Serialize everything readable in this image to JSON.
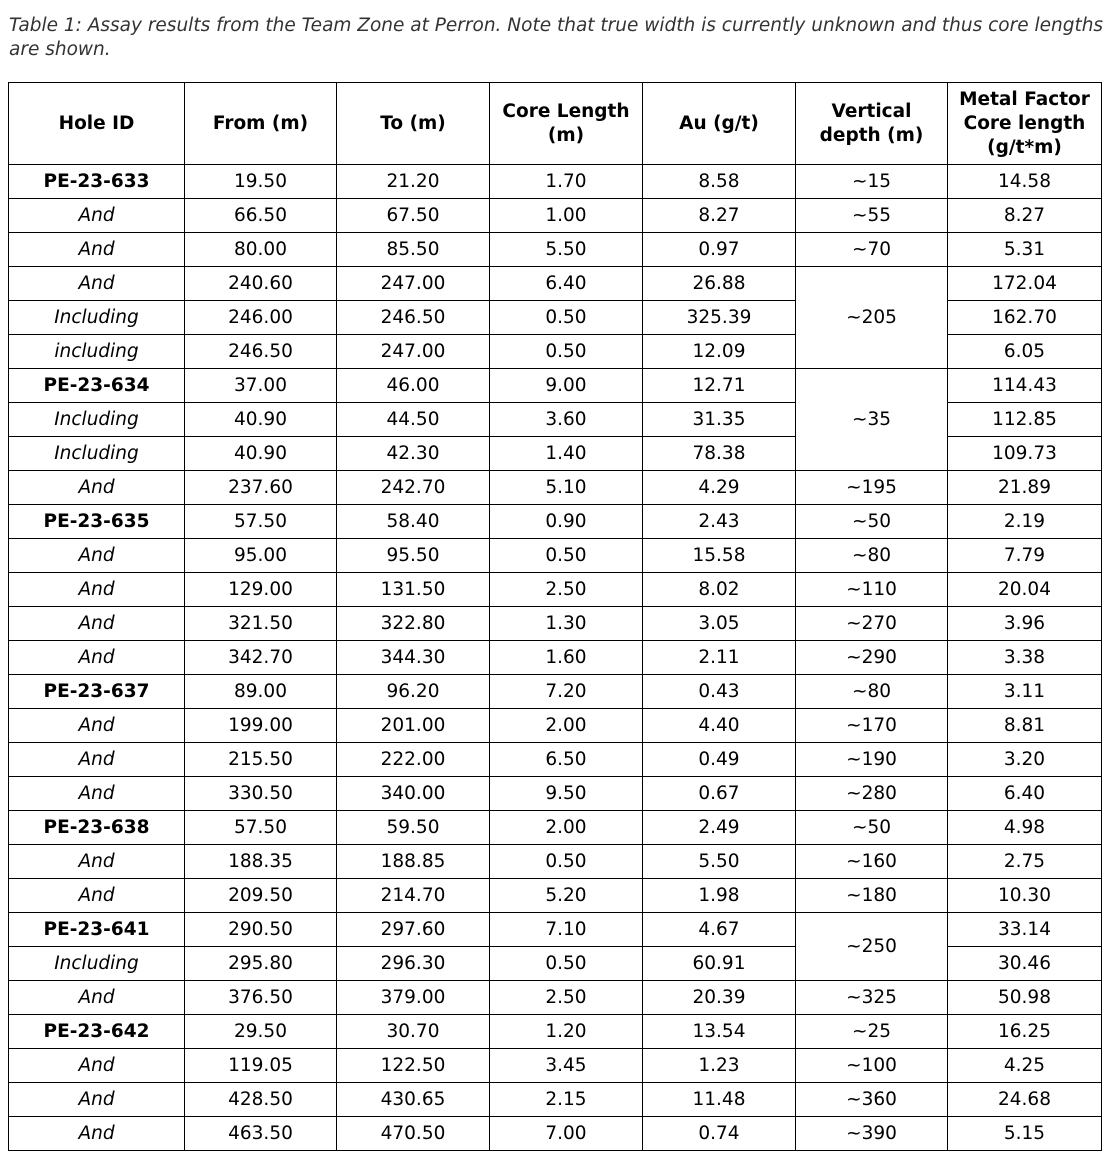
{
  "caption": "Table 1: Assay results from the Team Zone at Perron. Note that true width is currently unknown and thus core lengths are shown.",
  "table": {
    "header": [
      [
        "Hole ID"
      ],
      [
        "From (m)"
      ],
      [
        "To (m)"
      ],
      [
        "Core Length",
        "(m)"
      ],
      [
        "Au (g/t)"
      ],
      [
        "Vertical",
        "depth (m)"
      ],
      [
        "Metal Factor",
        "Core length",
        "(g/t*m)"
      ]
    ],
    "holes": [
      {
        "rows": [
          [
            "PE-23-633",
            "19.50",
            "21.20",
            "1.70",
            "8.58",
            "~15",
            "14.58"
          ],
          [
            "And",
            "66.50",
            "67.50",
            "1.00",
            "8.27",
            "~55",
            "8.27"
          ],
          [
            "And",
            "80.00",
            "85.50",
            "5.50",
            "0.97",
            "~70",
            "5.31"
          ],
          [
            "And",
            "240.60",
            "247.00",
            "6.40",
            "26.88",
            "~205",
            "172.04"
          ],
          [
            "Including",
            "246.00",
            "246.50",
            "0.50",
            "325.39",
            null,
            "162.70"
          ],
          [
            "including",
            "246.50",
            "247.00",
            "0.50",
            "12.09",
            null,
            "6.05"
          ]
        ]
      },
      {
        "rows": [
          [
            "PE-23-634",
            "37.00",
            "46.00",
            "9.00",
            "12.71",
            "~35",
            "114.43"
          ],
          [
            "Including",
            "40.90",
            "44.50",
            "3.60",
            "31.35",
            null,
            "112.85"
          ],
          [
            "Including",
            "40.90",
            "42.30",
            "1.40",
            "78.38",
            null,
            "109.73"
          ],
          [
            "And",
            "237.60",
            "242.70",
            "5.10",
            "4.29",
            "~195",
            "21.89"
          ]
        ]
      },
      {
        "rows": [
          [
            "PE-23-635",
            "57.50",
            "58.40",
            "0.90",
            "2.43",
            "~50",
            "2.19"
          ],
          [
            "And",
            "95.00",
            "95.50",
            "0.50",
            "15.58",
            "~80",
            "7.79"
          ],
          [
            "And",
            "129.00",
            "131.50",
            "2.50",
            "8.02",
            "~110",
            "20.04"
          ],
          [
            "And",
            "321.50",
            "322.80",
            "1.30",
            "3.05",
            "~270",
            "3.96"
          ],
          [
            "And",
            "342.70",
            "344.30",
            "1.60",
            "2.11",
            "~290",
            "3.38"
          ]
        ]
      },
      {
        "rows": [
          [
            "PE-23-637",
            "89.00",
            "96.20",
            "7.20",
            "0.43",
            "~80",
            "3.11"
          ],
          [
            "And",
            "199.00",
            "201.00",
            "2.00",
            "4.40",
            "~170",
            "8.81"
          ],
          [
            "And",
            "215.50",
            "222.00",
            "6.50",
            "0.49",
            "~190",
            "3.20"
          ],
          [
            "And",
            "330.50",
            "340.00",
            "9.50",
            "0.67",
            "~280",
            "6.40"
          ]
        ]
      },
      {
        "rows": [
          [
            "PE-23-638",
            "57.50",
            "59.50",
            "2.00",
            "2.49",
            "~50",
            "4.98"
          ],
          [
            "And",
            "188.35",
            "188.85",
            "0.50",
            "5.50",
            "~160",
            "2.75"
          ],
          [
            "And",
            "209.50",
            "214.70",
            "5.20",
            "1.98",
            "~180",
            "10.30"
          ]
        ]
      },
      {
        "rows": [
          [
            "PE-23-641",
            "290.50",
            "297.60",
            "7.10",
            "4.67",
            "~250",
            "33.14"
          ],
          [
            "Including",
            "295.80",
            "296.30",
            "0.50",
            "60.91",
            null,
            "30.46"
          ],
          [
            "And",
            "376.50",
            "379.00",
            "2.50",
            "20.39",
            "~325",
            "50.98"
          ]
        ]
      },
      {
        "rows": [
          [
            "PE-23-642",
            "29.50",
            "30.70",
            "1.20",
            "13.54",
            "~25",
            "16.25"
          ],
          [
            "And",
            "119.05",
            "122.50",
            "3.45",
            "1.23",
            "~100",
            "4.25"
          ],
          [
            "And",
            "428.50",
            "430.65",
            "2.15",
            "11.48",
            "~360",
            "24.68"
          ],
          [
            "And",
            "463.50",
            "470.50",
            "7.00",
            "0.74",
            "~390",
            "5.15"
          ]
        ]
      }
    ]
  }
}
